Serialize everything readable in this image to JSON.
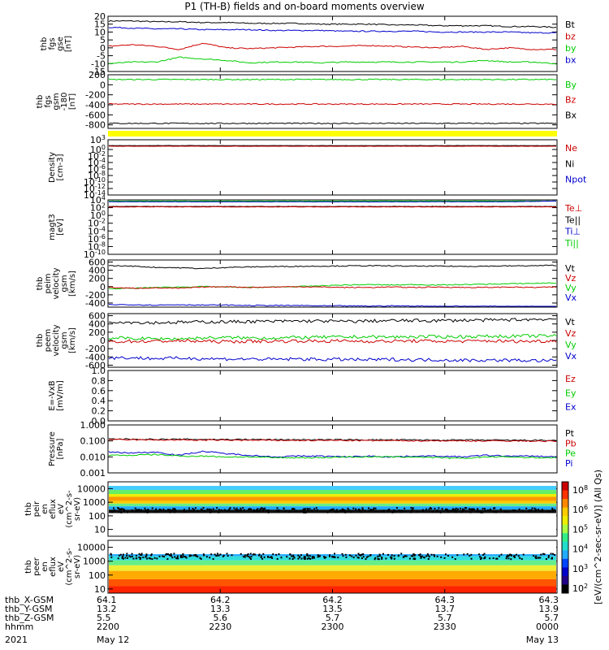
{
  "title": "P1 (TH-B) fields and on-board moments overview",
  "year": "2021",
  "colors": {
    "black": "#000000",
    "red": "#cc0000",
    "green": "#00cc00",
    "blue": "#0000cc",
    "yellow": "#ffff00"
  },
  "colorbar": {
    "label": "[eV/(cm^2-sec-sr-eV)] (All Qs)",
    "ticks": [
      "10^8",
      "10^6",
      "10^5",
      "10^4",
      "10^3",
      "10^2"
    ]
  },
  "chart_data": [
    {
      "id": "fgs",
      "type": "line",
      "ylabel": [
        "thb",
        "fgs",
        "gse",
        "[nT]"
      ],
      "yticks": [
        "20",
        "15",
        "10",
        "5",
        "0",
        "-5",
        "-10",
        "-15"
      ],
      "ylim": [
        -15,
        20
      ],
      "legend": [
        {
          "name": "Bt",
          "color": "black"
        },
        {
          "name": "bz",
          "color": "red"
        },
        {
          "name": "by",
          "color": "green"
        },
        {
          "name": "bx",
          "color": "blue"
        }
      ],
      "series": [
        {
          "name": "Bt",
          "color": "black",
          "values": [
            17,
            17,
            16.5,
            16.5,
            16,
            16,
            15.5,
            15.5,
            15.5,
            15,
            15,
            15,
            14.5,
            14.5,
            14,
            14,
            14,
            13.5,
            13.5,
            13
          ]
        },
        {
          "name": "bx",
          "color": "blue",
          "values": [
            13,
            12.5,
            12,
            12,
            11.5,
            11.5,
            11.5,
            11,
            11,
            11,
            10.5,
            10.5,
            10.5,
            10.5,
            10,
            10,
            10,
            10,
            9.5,
            9.5
          ]
        },
        {
          "name": "bz",
          "color": "red",
          "values": [
            1,
            2,
            1,
            -1,
            3,
            0,
            -0.5,
            0,
            0.5,
            1,
            1,
            1.5,
            1,
            0.5,
            0,
            1,
            -1,
            0,
            -1,
            -1
          ]
        },
        {
          "name": "by",
          "color": "green",
          "values": [
            -10,
            -9,
            -9,
            -6,
            -7,
            -8,
            -9.5,
            -9,
            -9,
            -9.5,
            -9,
            -9,
            -9,
            -9,
            -9,
            -9,
            -8,
            -9,
            -9,
            -10
          ]
        }
      ]
    },
    {
      "id": "fgs_gsm",
      "type": "line",
      "ylabel": [
        "thb",
        "fgs",
        "gsm",
        "-180",
        "[nT]"
      ],
      "yticks": [
        "200",
        "0",
        "-200",
        "-400",
        "-600",
        "-800"
      ],
      "ylim": [
        -870,
        200
      ],
      "legend": [
        {
          "name": "By",
          "color": "green"
        },
        {
          "name": "Bz",
          "color": "red"
        },
        {
          "name": "Bx",
          "color": "black"
        }
      ],
      "series": [
        {
          "name": "By",
          "color": "green",
          "values": [
            105,
            105,
            105,
            105,
            105,
            105,
            105,
            105,
            105,
            105,
            105,
            105,
            105,
            105,
            105,
            105,
            105,
            105,
            105,
            105
          ]
        },
        {
          "name": "Bz",
          "color": "red",
          "values": [
            -385,
            -385,
            -385,
            -385,
            -385,
            -385,
            -385,
            -385,
            -385,
            -385,
            -385,
            -385,
            -385,
            -385,
            -385,
            -385,
            -385,
            -385,
            -385,
            -385
          ]
        },
        {
          "name": "Bx",
          "color": "black",
          "values": [
            -770,
            -770,
            -770,
            -770,
            -770,
            -770,
            -770,
            -770,
            -770,
            -770,
            -770,
            -770,
            -770,
            -770,
            -770,
            -770,
            -770,
            -770,
            -770,
            -770
          ]
        }
      ]
    },
    {
      "id": "density",
      "type": "line",
      "ylabel": [
        "Density",
        "[cm-3]"
      ],
      "yticks": [
        "10^3",
        "10^0",
        "10^-2",
        "10^-4",
        "10^-6",
        "10^-8",
        "10^-10",
        "10^-12",
        "10^-14"
      ],
      "log_exponents": [
        3,
        0,
        -2,
        -4,
        -6,
        -8,
        -10,
        -12,
        -14
      ],
      "ylim_exp": [
        -14,
        3
      ],
      "legend": [
        {
          "name": "Ne",
          "color": "red"
        },
        {
          "name": "Ni",
          "color": "black"
        },
        {
          "name": "Npot",
          "color": "blue"
        }
      ],
      "series": [
        {
          "name": "Ni",
          "color": "black",
          "exp_values": [
            1.2,
            1.2,
            1.2,
            1.2,
            1.2,
            1.2,
            1.2,
            1.2,
            1.2,
            1.2,
            1.2,
            1.2,
            1.2,
            1.2,
            1.2,
            1.2,
            1.2,
            1.2,
            1.2,
            1.2
          ]
        },
        {
          "name": "Ne",
          "color": "red",
          "exp_values": [
            1.0,
            1.0,
            1.0,
            1.0,
            1.0,
            1.0,
            1.0,
            1.0,
            1.0,
            1.0,
            1.0,
            1.0,
            1.0,
            1.0,
            1.0,
            1.0,
            1.0,
            1.0,
            1.0,
            1.0
          ]
        }
      ]
    },
    {
      "id": "temperature",
      "type": "line",
      "ylabel": [
        "magt3",
        "[eV]"
      ],
      "yticks": [
        "10^4",
        "10^2",
        "10^0",
        "10^-2",
        "10^-4",
        "10^-6",
        "10^-8",
        "10^-10"
      ],
      "log_exponents": [
        4,
        2,
        0,
        -2,
        -4,
        -6,
        -8,
        -10
      ],
      "ylim_exp": [
        -10,
        4
      ],
      "legend": [
        {
          "name": "Te⊥",
          "color": "red"
        },
        {
          "name": "Te||",
          "color": "black"
        },
        {
          "name": "Ti⊥",
          "color": "blue"
        },
        {
          "name": "Ti||",
          "color": "green"
        }
      ],
      "series": [
        {
          "name": "Ti||",
          "color": "green",
          "exp_values": [
            3.7,
            3.7,
            3.7,
            3.7,
            3.7,
            3.7,
            3.7,
            3.7,
            3.7,
            3.7,
            3.7,
            3.7,
            3.7,
            3.7,
            3.7,
            3.7,
            3.7,
            3.7,
            3.7,
            3.7
          ]
        },
        {
          "name": "Ti⊥",
          "color": "blue",
          "exp_values": [
            3.5,
            3.5,
            3.5,
            3.5,
            3.5,
            3.5,
            3.5,
            3.5,
            3.5,
            3.5,
            3.5,
            3.5,
            3.5,
            3.5,
            3.5,
            3.5,
            3.5,
            3.5,
            3.6,
            3.7
          ]
        },
        {
          "name": "Te||",
          "color": "black",
          "exp_values": [
            2.3,
            2.3,
            2.3,
            2.3,
            2.3,
            2.3,
            2.3,
            2.3,
            2.3,
            2.3,
            2.3,
            2.3,
            2.3,
            2.3,
            2.3,
            2.3,
            2.3,
            2.3,
            2.3,
            2.3
          ]
        },
        {
          "name": "Te⊥",
          "color": "red",
          "exp_values": [
            2.2,
            2.2,
            2.2,
            2.2,
            2.2,
            2.2,
            2.2,
            2.2,
            2.2,
            2.2,
            2.2,
            2.2,
            2.2,
            2.2,
            2.2,
            2.2,
            2.2,
            2.2,
            2.2,
            2.2
          ]
        }
      ]
    },
    {
      "id": "peim",
      "type": "line",
      "ylabel": [
        "thb",
        "peim",
        "velocity",
        "gsm",
        "[km/s]"
      ],
      "yticks": [
        "600",
        "400",
        "200",
        "0",
        "-200",
        "-400"
      ],
      "ylim": [
        -500,
        650
      ],
      "legend": [
        {
          "name": "Vt",
          "color": "black"
        },
        {
          "name": "Vz",
          "color": "red"
        },
        {
          "name": "Vy",
          "color": "green"
        },
        {
          "name": "Vx",
          "color": "blue"
        }
      ],
      "series": [
        {
          "name": "Vt",
          "color": "black",
          "values": [
            510,
            500,
            470,
            460,
            440,
            470,
            480,
            490,
            495,
            500,
            505,
            510,
            505,
            500,
            500,
            495,
            500,
            505,
            510,
            520
          ]
        },
        {
          "name": "Vy",
          "color": "green",
          "values": [
            -50,
            -40,
            -20,
            -10,
            0,
            -10,
            -20,
            -10,
            0,
            20,
            40,
            50,
            40,
            50,
            40,
            50,
            60,
            70,
            80,
            90
          ]
        },
        {
          "name": "Vz",
          "color": "red",
          "values": [
            -20,
            -40,
            -30,
            -40,
            -10,
            0,
            -20,
            -10,
            0,
            -10,
            -20,
            -20,
            -10,
            -20,
            -10,
            -20,
            -20,
            -10,
            -20,
            -10
          ]
        },
        {
          "name": "Vx",
          "color": "blue",
          "values": [
            -440,
            -440,
            -450,
            -440,
            -450,
            -450,
            -460,
            -460,
            -460,
            -470,
            -470,
            -475,
            -470,
            -475,
            -480,
            -480,
            -480,
            -485,
            -485,
            -490
          ]
        }
      ]
    },
    {
      "id": "peem",
      "type": "line",
      "ylabel": [
        "thb",
        "peem",
        "velocity",
        "gsm",
        "[km/s]"
      ],
      "yticks": [
        "600",
        "400",
        "200",
        "0",
        "-200",
        "-400",
        "-600"
      ],
      "ylim": [
        -650,
        650
      ],
      "legend": [
        {
          "name": "Vt",
          "color": "black"
        },
        {
          "name": "Vz",
          "color": "red"
        },
        {
          "name": "Vy",
          "color": "green"
        },
        {
          "name": "Vx",
          "color": "blue"
        }
      ],
      "series": [
        {
          "name": "Vt",
          "color": "black",
          "values": [
            460,
            440,
            430,
            440,
            450,
            450,
            460,
            460,
            470,
            470,
            460,
            470,
            480,
            480,
            480,
            490,
            490,
            500,
            510,
            520
          ]
        },
        {
          "name": "Vy",
          "color": "green",
          "values": [
            60,
            50,
            40,
            40,
            60,
            70,
            60,
            60,
            70,
            80,
            80,
            90,
            80,
            90,
            90,
            90,
            100,
            100,
            110,
            110
          ]
        },
        {
          "name": "Vz",
          "color": "red",
          "values": [
            -30,
            -20,
            -20,
            -10,
            -20,
            -30,
            -20,
            -20,
            -10,
            -20,
            -10,
            -20,
            -20,
            -10,
            -20,
            -20,
            -10,
            -20,
            -20,
            -10
          ]
        },
        {
          "name": "Vx",
          "color": "blue",
          "values": [
            -420,
            -420,
            -440,
            -430,
            -440,
            -450,
            -450,
            -460,
            -450,
            -460,
            -460,
            -470,
            -460,
            -470,
            -470,
            -480,
            -480,
            -480,
            -490,
            -490
          ]
        }
      ]
    },
    {
      "id": "efield",
      "type": "line",
      "ylabel": [
        "E=-VxB",
        "[mV/m]"
      ],
      "yticks": [
        "1.0",
        "0.8",
        "0.6",
        "0.4",
        "0.2",
        "0.0"
      ],
      "ylim": [
        0,
        1
      ],
      "legend": [
        {
          "name": "Ez",
          "color": "red"
        },
        {
          "name": "Ey",
          "color": "green"
        },
        {
          "name": "Ex",
          "color": "blue"
        }
      ],
      "series": []
    },
    {
      "id": "pressure",
      "type": "line",
      "ylabel": [
        "Pressure",
        "[nPa]"
      ],
      "yticks": [
        "1.000",
        "0.100",
        "0.010",
        "0.001"
      ],
      "log_exponents": [
        0,
        -1,
        -2,
        -3
      ],
      "ylim_exp": [
        -3,
        0
      ],
      "legend": [
        {
          "name": "Pt",
          "color": "black"
        },
        {
          "name": "Pb",
          "color": "red"
        },
        {
          "name": "Pe",
          "color": "green"
        },
        {
          "name": "Pi",
          "color": "blue"
        }
      ],
      "series": [
        {
          "name": "Pt",
          "color": "black",
          "exp_values": [
            -0.88,
            -0.89,
            -0.9,
            -0.9,
            -0.9,
            -0.91,
            -0.91,
            -0.92,
            -0.92,
            -0.93,
            -0.93,
            -0.93,
            -0.94,
            -0.94,
            -0.95,
            -0.95,
            -0.95,
            -0.96,
            -0.96,
            -0.97
          ]
        },
        {
          "name": "Pb",
          "color": "red",
          "exp_values": [
            -0.92,
            -0.93,
            -0.94,
            -0.94,
            -0.95,
            -0.95,
            -0.96,
            -0.96,
            -0.97,
            -0.97,
            -0.97,
            -0.98,
            -0.98,
            -0.99,
            -0.99,
            -1.0,
            -1.0,
            -1.0,
            -1.01,
            -1.02
          ]
        },
        {
          "name": "Pi",
          "color": "blue",
          "exp_values": [
            -1.7,
            -1.75,
            -1.7,
            -1.9,
            -1.65,
            -1.8,
            -1.9,
            -2.0,
            -1.95,
            -1.95,
            -2.0,
            -1.95,
            -2.0,
            -1.95,
            -1.95,
            -2.0,
            -1.9,
            -1.95,
            -1.95,
            -2.0
          ]
        },
        {
          "name": "Pe",
          "color": "green",
          "exp_values": [
            -1.9,
            -1.9,
            -1.85,
            -1.95,
            -1.95,
            -2.0,
            -2.0,
            -2.05,
            -2.05,
            -2.05,
            -2.0,
            -2.0,
            -2.0,
            -2.0,
            -2.05,
            -2.1,
            -2.0,
            -2.0,
            -2.05,
            -2.05
          ]
        }
      ]
    },
    {
      "id": "peir",
      "type": "heatmap",
      "ylabel": [
        "thb",
        "peir",
        "en",
        "eflux",
        "eV",
        "(cm^2-s-",
        "sr-eV)"
      ],
      "yticks": [
        "10000",
        "1000",
        "100",
        "10"
      ],
      "log_exponents": [
        4,
        3,
        2,
        1
      ],
      "ylim_exp": [
        0.5,
        4.5
      ]
    },
    {
      "id": "peer",
      "type": "heatmap",
      "ylabel": [
        "thb",
        "peer",
        "en",
        "eflux",
        "eV",
        "(cm^2-s-",
        "sr-eV)"
      ],
      "yticks": [
        "10000",
        "1000",
        "100",
        "10"
      ],
      "log_exponents": [
        4,
        3,
        2,
        1
      ],
      "ylim_exp": [
        0.7,
        4.5
      ]
    }
  ],
  "xaxis": {
    "row_labels": [
      "thb_X-GSM",
      "thb_Y-GSM",
      "thb_Z-GSM",
      "hhmm",
      "2021"
    ],
    "columns": [
      {
        "x": [
          "64.1",
          "13.2",
          "5.5",
          "2200",
          "May 12"
        ]
      },
      {
        "x": [
          "64.2",
          "13.3",
          "5.6",
          "2230",
          ""
        ]
      },
      {
        "x": [
          "64.2",
          "13.5",
          "5.7",
          "2300",
          ""
        ]
      },
      {
        "x": [
          "64.3",
          "13.7",
          "5.7",
          "2330",
          ""
        ]
      },
      {
        "x": [
          "64.3",
          "13.9",
          "5.7",
          "0000",
          "May 13"
        ]
      }
    ]
  }
}
